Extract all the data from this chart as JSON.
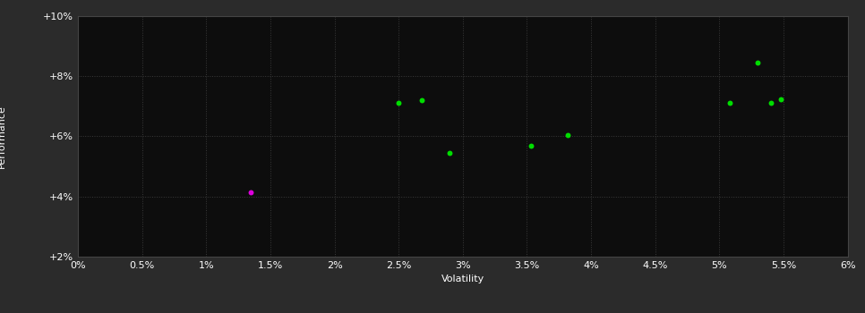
{
  "background_color": "#2b2b2b",
  "plot_background_color": "#0d0d0d",
  "grid_color": "#3a3a3a",
  "grid_style": ":",
  "xlabel": "Volatility",
  "ylabel": "Performance",
  "xlim": [
    0.0,
    0.06
  ],
  "ylim": [
    0.02,
    0.1
  ],
  "xticks": [
    0.0,
    0.005,
    0.01,
    0.015,
    0.02,
    0.025,
    0.03,
    0.035,
    0.04,
    0.045,
    0.05,
    0.055,
    0.06
  ],
  "yticks": [
    0.02,
    0.04,
    0.06,
    0.08,
    0.1
  ],
  "green_points": [
    [
      0.025,
      0.071
    ],
    [
      0.0268,
      0.0718
    ],
    [
      0.029,
      0.0545
    ],
    [
      0.0353,
      0.0568
    ],
    [
      0.0382,
      0.0605
    ],
    [
      0.0508,
      0.0712
    ],
    [
      0.053,
      0.0845
    ],
    [
      0.054,
      0.0712
    ],
    [
      0.0548,
      0.0722
    ]
  ],
  "magenta_points": [
    [
      0.0135,
      0.0415
    ]
  ],
  "green_color": "#00dd00",
  "magenta_color": "#dd00dd",
  "point_size": 18,
  "tick_label_color": "#ffffff",
  "axis_label_color": "#ffffff",
  "label_fontsize": 8,
  "tick_fontsize": 8
}
